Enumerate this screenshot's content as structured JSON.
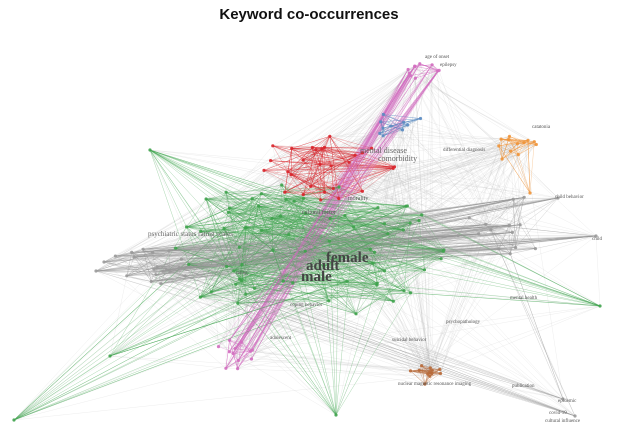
{
  "title": "Keyword co-occurrences",
  "colors": {
    "green": "#3fa34d",
    "red": "#d9262c",
    "gray": "#9a9a9a",
    "pink": "#d36fc0",
    "orange": "#f0953a",
    "blue": "#5b8cc2",
    "brown": "#b86a3a"
  },
  "labels": {
    "female": "female",
    "adult": "adult",
    "male": "male",
    "psychiatric_rating": "psychiatric status rating scales",
    "mental_disease": "mental disease",
    "comorbidity": "comorbidity",
    "morality": "morality",
    "cultural_factor": "cultural factor",
    "age_of_onset": "age of onset",
    "epilepsy": "epilepsy",
    "catatonia": "catatonia",
    "differential_diagnosis": "differential diagnosis",
    "child_behavior": "child behavior",
    "child": "child",
    "covid": "covid-19",
    "epidemic": "epidemic",
    "cultural_influence": "cultural influence",
    "mental_health": "mental health",
    "psychopathology": "psychopathology",
    "suicidal_behavior": "suicidal behavior",
    "coping_behavior": "coping behavior",
    "publication": "publication",
    "neuroimaging": "nuclear magnetic resonance imaging",
    "rating": "rating",
    "adolescent": "adolescent"
  }
}
